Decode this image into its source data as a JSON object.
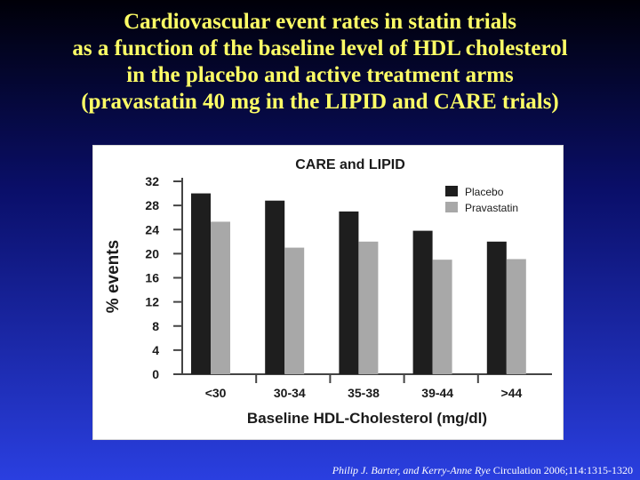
{
  "slide": {
    "title_lines": [
      "Cardiovascular event rates in statin trials",
      "as a function of the baseline level of HDL cholesterol",
      "in the placebo and active treatment arms",
      "(pravastatin 40 mg in the LIPID and CARE trials)"
    ],
    "citation_authors": "Philip J. Barter, and Kerry-Anne Rye",
    "citation_journal": "Circulation 2006;114:1315-1320"
  },
  "chart_data": {
    "type": "bar",
    "title": "CARE and LIPID",
    "xlabel": "Baseline HDL-Cholesterol (mg/dl)",
    "ylabel": "% events",
    "categories": [
      "<30",
      "30-34",
      "35-38",
      "39-44",
      ">44"
    ],
    "yticks": [
      0,
      4,
      8,
      12,
      16,
      20,
      24,
      28,
      32
    ],
    "ylim": [
      0,
      32
    ],
    "series": [
      {
        "name": "Placebo",
        "values": [
          30.0,
          28.8,
          27.0,
          23.8,
          22.0
        ],
        "color": "#1e1e1e"
      },
      {
        "name": "Pravastatin",
        "values": [
          25.3,
          21.0,
          22.0,
          19.0,
          19.1
        ],
        "color": "#a8a8a8"
      }
    ],
    "legend_position": "top-right",
    "grid": false
  }
}
